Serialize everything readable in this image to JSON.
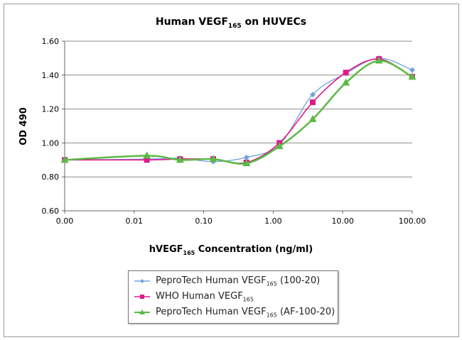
{
  "chart_data": {
    "type": "line",
    "title": {
      "main": "Human VEGF",
      "sub": "165",
      "rest": " on HUVECs"
    },
    "xlabel": {
      "main": "hVEGF",
      "sub": "165",
      "rest": " Concentration (ng/ml)"
    },
    "ylabel": "OD 490",
    "x_scale": "log",
    "xlim": [
      0.001,
      100
    ],
    "ylim": [
      0.6,
      1.6
    ],
    "x_ticks": [
      0.001,
      0.01,
      0.1,
      1,
      10,
      100
    ],
    "x_tick_labels": [
      "0.00",
      "0.01",
      "0.10",
      "1.00",
      "10.00",
      "100.00"
    ],
    "y_ticks": [
      0.6,
      0.8,
      1.0,
      1.2,
      1.4,
      1.6
    ],
    "y_tick_labels": [
      "0.60",
      "0.80",
      "1.00",
      "1.20",
      "1.40",
      "1.60"
    ],
    "grid": "horizontal",
    "legend_position": "bottom",
    "x": [
      0.001,
      0.0152,
      0.0457,
      0.137,
      0.412,
      1.23,
      3.7,
      11.1,
      33.3,
      100
    ],
    "series": [
      {
        "name": {
          "main": "PeproTech Human VEGF",
          "sub": "165",
          "rest": " (100-20)"
        },
        "color": "#6fa3dc",
        "marker": "diamond",
        "values": [
          0.9,
          0.905,
          0.91,
          0.89,
          0.915,
          0.99,
          1.285,
          1.41,
          1.5,
          1.43
        ]
      },
      {
        "name": {
          "main": "WHO Human VEGF",
          "sub": "165",
          "rest": ""
        },
        "color": "#e0198a",
        "marker": "square",
        "values": [
          0.9,
          0.9,
          0.905,
          0.905,
          0.885,
          1.0,
          1.24,
          1.415,
          1.495,
          1.39
        ]
      },
      {
        "name": {
          "main": "PeproTech Human VEGF",
          "sub": "165",
          "rest": " (AF-100-20)"
        },
        "color": "#5cb946",
        "marker": "triangle",
        "values": [
          0.9,
          0.925,
          0.9,
          0.905,
          0.88,
          0.98,
          1.14,
          1.355,
          1.485,
          1.39
        ]
      }
    ]
  }
}
